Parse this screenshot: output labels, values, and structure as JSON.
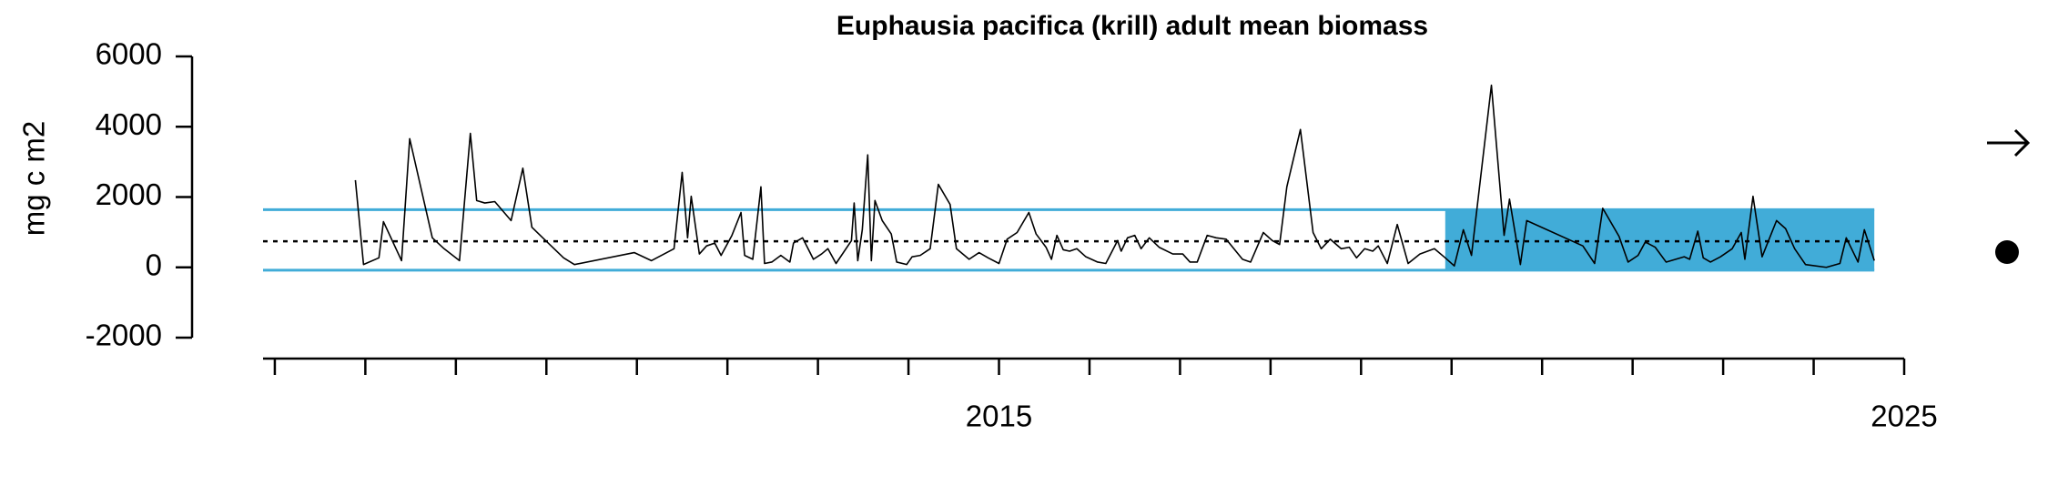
{
  "chart_data": {
    "type": "line",
    "title": "Euphausia pacifica (krill) adult mean biomass",
    "y_label": "mg c m2",
    "xlim": [
      2006.87,
      2025
    ],
    "xticks": [
      2015,
      2025
    ],
    "minor_xticks": [
      2007,
      2008,
      2009,
      2010,
      2011,
      2012,
      2013,
      2014,
      2016,
      2017,
      2018,
      2019,
      2020,
      2021,
      2022,
      2023,
      2024
    ],
    "ylim": [
      -2000,
      6000
    ],
    "yticks": [
      -2000,
      0,
      2000,
      4000,
      6000
    ],
    "mean": 740,
    "upper": 1640,
    "lower": -80,
    "band_color": "#41acd8",
    "recent_period": [
      2019.93,
      2024.67
    ],
    "series": [
      {
        "color": "#000000",
        "x": [
          2007.89,
          2007.98,
          2008.15,
          2008.2,
          2008.4,
          2008.49,
          2008.74,
          2008.87,
          2009.04,
          2009.16,
          2009.23,
          2009.32,
          2009.43,
          2009.61,
          2009.74,
          2009.84,
          2009.96,
          2010.19,
          2010.31,
          2010.97,
          2011.16,
          2011.41,
          2011.5,
          2011.56,
          2011.6,
          2011.69,
          2011.77,
          2011.86,
          2011.93,
          2012.05,
          2012.15,
          2012.19,
          2012.28,
          2012.37,
          2012.41,
          2012.49,
          2012.59,
          2012.69,
          2012.73,
          2012.83,
          2012.95,
          2013.04,
          2013.11,
          2013.2,
          2013.37,
          2013.4,
          2013.44,
          2013.49,
          2013.55,
          2013.59,
          2013.63,
          2013.71,
          2013.81,
          2013.87,
          2013.98,
          2014.04,
          2014.13,
          2014.24,
          2014.33,
          2014.46,
          2014.53,
          2014.67,
          2014.78,
          2014.88,
          2015.0,
          2015.09,
          2015.2,
          2015.33,
          2015.41,
          2015.52,
          2015.58,
          2015.64,
          2015.71,
          2015.78,
          2015.86,
          2015.96,
          2016.09,
          2016.18,
          2016.25,
          2016.31,
          2016.35,
          2016.42,
          2016.5,
          2016.57,
          2016.66,
          2016.77,
          2016.92,
          2017.03,
          2017.11,
          2017.19,
          2017.3,
          2017.4,
          2017.51,
          2017.69,
          2017.78,
          2017.92,
          2018.02,
          2018.1,
          2018.18,
          2018.33,
          2018.47,
          2018.56,
          2018.66,
          2018.78,
          2018.87,
          2018.95,
          2019.04,
          2019.13,
          2019.19,
          2019.29,
          2019.4,
          2019.52,
          2019.65,
          2019.81,
          2019.93,
          2020.03,
          2020.13,
          2020.22,
          2020.44,
          2020.58,
          2020.64,
          2020.76,
          2020.83,
          2021.45,
          2021.58,
          2021.67,
          2021.85,
          2021.95,
          2022.06,
          2022.14,
          2022.25,
          2022.37,
          2022.57,
          2022.63,
          2022.72,
          2022.78,
          2022.86,
          2022.97,
          2023.1,
          2023.2,
          2023.24,
          2023.33,
          2023.43,
          2023.59,
          2023.69,
          2023.79,
          2023.91,
          2024.14,
          2024.29,
          2024.36,
          2024.49,
          2024.56,
          2024.67
        ],
        "values": [
          2480,
          80,
          270,
          1300,
          190,
          3660,
          840,
          530,
          190,
          3810,
          1900,
          1830,
          1870,
          1330,
          2820,
          1140,
          840,
          270,
          80,
          420,
          190,
          530,
          2700,
          840,
          2020,
          380,
          610,
          690,
          340,
          910,
          1560,
          340,
          230,
          2290,
          110,
          150,
          340,
          150,
          690,
          840,
          230,
          380,
          530,
          110,
          760,
          1830,
          190,
          1070,
          3200,
          190,
          1900,
          1330,
          950,
          150,
          80,
          300,
          340,
          530,
          2360,
          1790,
          530,
          230,
          420,
          270,
          110,
          800,
          990,
          1560,
          950,
          570,
          230,
          910,
          500,
          460,
          530,
          300,
          150,
          110,
          460,
          760,
          460,
          840,
          910,
          530,
          840,
          570,
          380,
          380,
          150,
          150,
          910,
          840,
          800,
          230,
          150,
          990,
          760,
          650,
          2290,
          3920,
          990,
          530,
          800,
          530,
          570,
          270,
          530,
          460,
          610,
          110,
          1220,
          110,
          380,
          530,
          270,
          40,
          1070,
          340,
          5180,
          910,
          1940,
          80,
          1330,
          610,
          110,
          1680,
          880,
          150,
          340,
          720,
          570,
          150,
          300,
          230,
          1030,
          270,
          150,
          300,
          530,
          990,
          230,
          2020,
          300,
          1330,
          1100,
          530,
          80,
          0,
          110,
          840,
          150,
          1070,
          190
        ]
      }
    ]
  }
}
